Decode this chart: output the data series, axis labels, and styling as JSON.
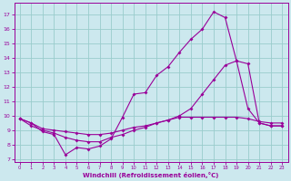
{
  "xlabel": "Windchill (Refroidissement éolien,°C)",
  "xlim": [
    -0.5,
    23.5
  ],
  "ylim": [
    6.8,
    17.8
  ],
  "xticks": [
    0,
    1,
    2,
    3,
    4,
    5,
    6,
    7,
    8,
    9,
    10,
    11,
    12,
    13,
    14,
    15,
    16,
    17,
    18,
    19,
    20,
    21,
    22,
    23
  ],
  "yticks": [
    7,
    8,
    9,
    10,
    11,
    12,
    13,
    14,
    15,
    16,
    17
  ],
  "bg_color": "#cce8ee",
  "line_color": "#990099",
  "grid_color": "#99cccc",
  "line1_x": [
    0,
    1,
    2,
    3,
    4,
    5,
    6,
    7,
    8,
    9,
    10,
    11,
    12,
    13,
    14,
    15,
    16,
    17,
    18,
    19,
    20,
    21,
    22,
    23
  ],
  "line1_y": [
    9.8,
    9.5,
    8.9,
    8.7,
    7.3,
    7.8,
    7.7,
    7.9,
    8.4,
    9.9,
    11.5,
    11.6,
    12.8,
    13.4,
    14.4,
    15.3,
    16.0,
    17.2,
    16.8,
    13.8,
    10.5,
    9.5,
    9.3,
    9.3
  ],
  "line2_x": [
    0,
    1,
    2,
    3,
    4,
    5,
    6,
    7,
    8,
    9,
    10,
    11,
    12,
    13,
    14,
    15,
    16,
    17,
    18,
    19,
    20,
    21,
    22,
    23
  ],
  "line2_y": [
    9.8,
    9.5,
    9.1,
    9.0,
    8.9,
    8.8,
    8.7,
    8.7,
    8.8,
    9.0,
    9.2,
    9.3,
    9.5,
    9.7,
    10.0,
    10.5,
    11.5,
    12.5,
    13.5,
    13.8,
    13.6,
    9.5,
    9.3,
    9.3
  ],
  "line3_x": [
    0,
    1,
    2,
    3,
    4,
    5,
    6,
    7,
    8,
    9,
    10,
    11,
    12,
    13,
    14,
    15,
    16,
    17,
    18,
    19,
    20,
    21,
    22,
    23
  ],
  "line3_y": [
    9.8,
    9.3,
    9.0,
    8.8,
    8.5,
    8.3,
    8.2,
    8.2,
    8.5,
    8.7,
    9.0,
    9.2,
    9.5,
    9.7,
    9.9,
    9.9,
    9.9,
    9.9,
    9.9,
    9.9,
    9.8,
    9.6,
    9.5,
    9.5
  ]
}
